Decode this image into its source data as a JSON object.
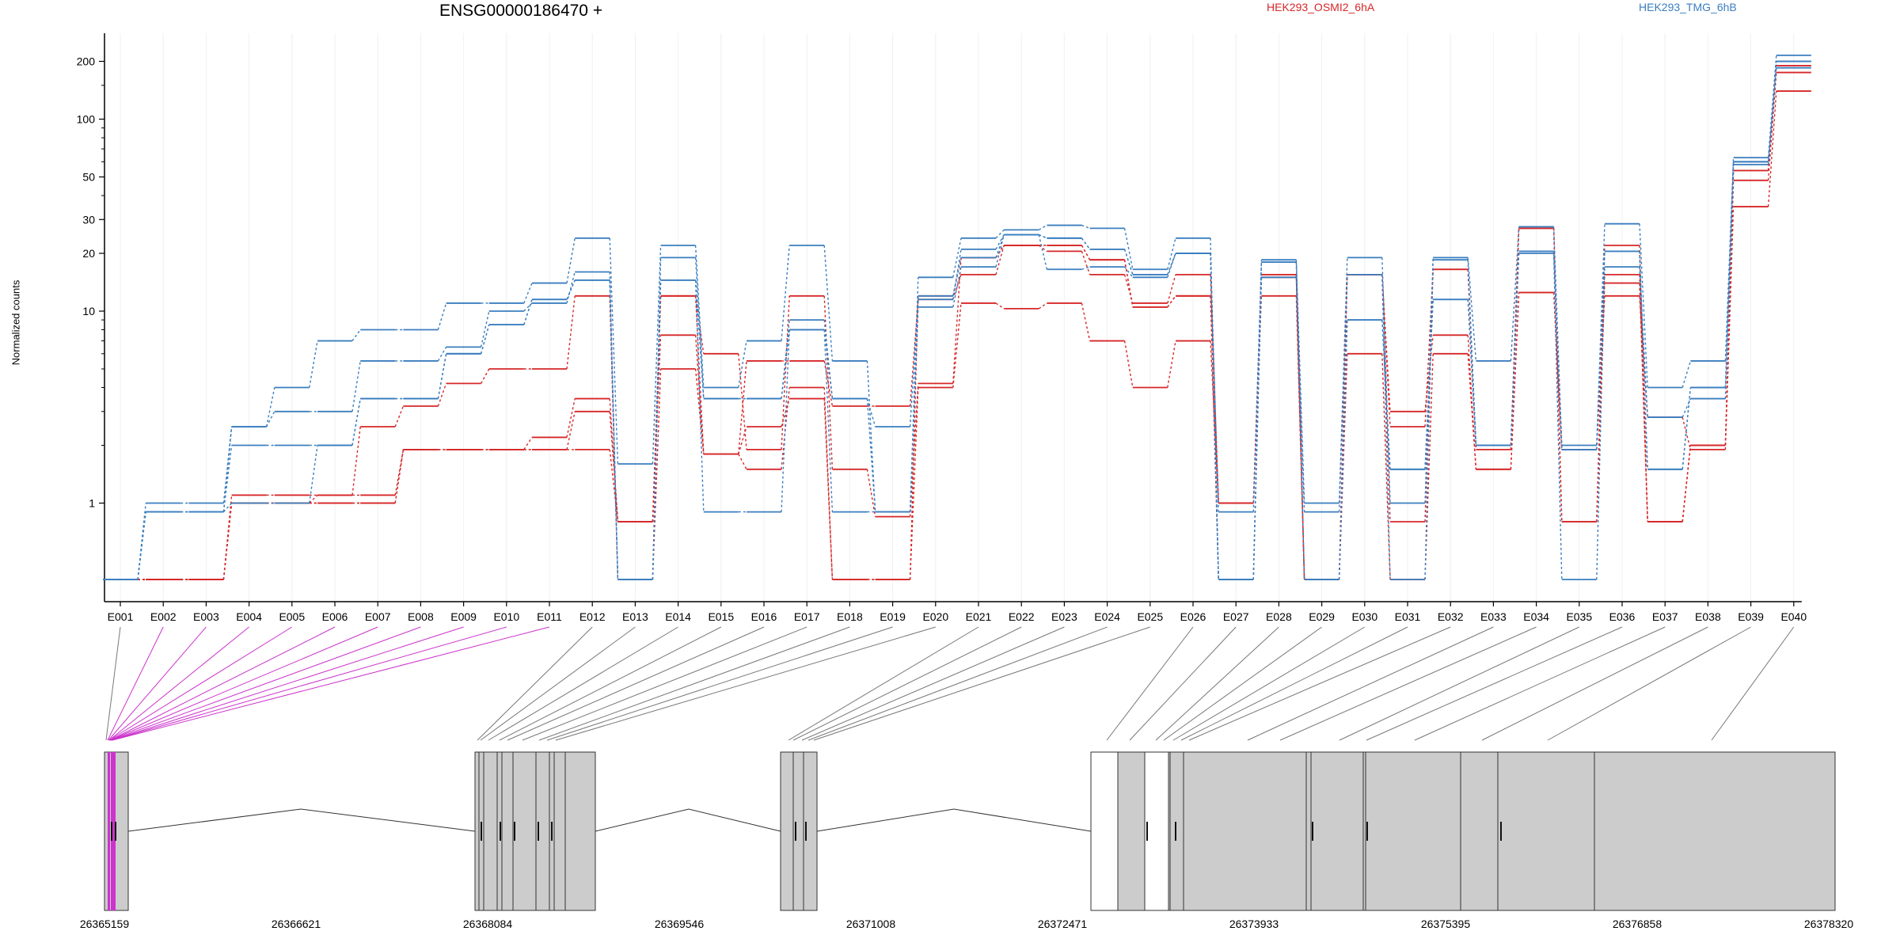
{
  "chart_data": {
    "type": "line",
    "title": "ENSG00000186470 +",
    "ylabel": "Normalized counts",
    "yscale": "log",
    "ylim": [
      0.4,
      250
    ],
    "yticks": [
      1,
      10,
      20,
      30,
      50,
      100,
      200
    ],
    "ytick_labels": [
      "1",
      "10",
      "20",
      "30",
      "50",
      "100",
      "200"
    ],
    "grid": "vertical",
    "categories": [
      "E001",
      "E002",
      "E003",
      "E004",
      "E005",
      "E006",
      "E007",
      "E008",
      "E009",
      "E010",
      "E011",
      "E012",
      "E013",
      "E014",
      "E015",
      "E016",
      "E017",
      "E018",
      "E019",
      "E020",
      "E021",
      "E022",
      "E023",
      "E024",
      "E025",
      "E026",
      "E027",
      "E028",
      "E029",
      "E030",
      "E031",
      "E032",
      "E033",
      "E034",
      "E035",
      "E036",
      "E037",
      "E038",
      "E039",
      "E040"
    ],
    "legend": [
      {
        "name": "HEK293_OSMI2_6hA",
        "color": "#d62728"
      },
      {
        "name": "HEK293_TMG_6hB",
        "color": "#3a7ebf"
      }
    ],
    "series": [
      {
        "group": "HEK293_OSMI2_6hA",
        "color": "#d62728",
        "values": [
          0.4,
          0.4,
          0.4,
          1.1,
          1.1,
          1.1,
          1.1,
          1.9,
          1.9,
          1.9,
          1.9,
          3.0,
          0.8,
          12,
          6.0,
          1.9,
          12,
          1.5,
          0.85,
          4.2,
          19,
          22,
          20.5,
          15.5,
          11,
          15.5,
          1.0,
          15.5,
          0.4,
          15.5,
          0.8,
          16.5,
          1.9,
          27,
          0.8,
          14,
          0.8,
          2.0,
          54,
          190
        ]
      },
      {
        "group": "HEK293_OSMI2_6hA",
        "color": "#d62728",
        "values": [
          0.4,
          0.4,
          0.4,
          1.0,
          1.0,
          1.0,
          1.0,
          1.9,
          1.9,
          1.9,
          2.2,
          3.5,
          0.8,
          7.5,
          1.8,
          5.5,
          5.5,
          3.2,
          3.2,
          11.5,
          15.5,
          22,
          22,
          18.5,
          10.5,
          12,
          1.0,
          12,
          0.4,
          15.5,
          3.0,
          7.5,
          1.5,
          12.5,
          1.9,
          12,
          2.8,
          1.9,
          35,
          140
        ]
      },
      {
        "group": "HEK293_OSMI2_6hA",
        "color": "#d62728",
        "values": [
          0.4,
          0.4,
          0.4,
          1.0,
          1.0,
          1.0,
          1.0,
          1.9,
          1.9,
          1.9,
          1.9,
          1.9,
          0.8,
          12,
          1.8,
          1.5,
          4.0,
          0.4,
          0.4,
          4.0,
          11,
          10.3,
          11,
          7.0,
          4.0,
          7.0,
          1.0,
          15,
          0.4,
          6.0,
          0.4,
          6.0,
          1.5,
          12.5,
          1.9,
          15.5,
          0.8,
          2.0,
          48,
          175
        ]
      },
      {
        "group": "HEK293_OSMI2_6hA",
        "color": "#d62728",
        "values": [
          0.4,
          0.4,
          0.4,
          1.0,
          1.0,
          1.1,
          2.5,
          3.2,
          4.2,
          5.0,
          5.0,
          12,
          0.4,
          5.0,
          1.8,
          2.5,
          3.5,
          0.4,
          0.4,
          12,
          19,
          22,
          22,
          18.5,
          10.5,
          12,
          0.4,
          15.5,
          0.4,
          15.5,
          2.5,
          16.5,
          2.0,
          27,
          0.8,
          22,
          0.8,
          2.0,
          54,
          190
        ]
      },
      {
        "group": "HEK293_TMG_6hB",
        "color": "#3a7ebf",
        "values": [
          0.4,
          1.0,
          1.0,
          2.5,
          4.0,
          7.0,
          8.0,
          8.0,
          11,
          11,
          14,
          24,
          1.6,
          22,
          4.0,
          7.0,
          22,
          5.5,
          0.9,
          15,
          24,
          26.5,
          28,
          27,
          16.5,
          24,
          0.4,
          18.5,
          1.0,
          19,
          1.0,
          19,
          5.5,
          27.5,
          2.0,
          28.5,
          4.0,
          5.5,
          63,
          215
        ]
      },
      {
        "group": "HEK293_TMG_6hB",
        "color": "#3a7ebf",
        "values": [
          0.4,
          0.9,
          0.9,
          2.5,
          3.0,
          3.0,
          5.5,
          5.5,
          6.5,
          10,
          11,
          16,
          0.4,
          19,
          3.5,
          3.5,
          9.0,
          3.5,
          0.9,
          11.5,
          21,
          25,
          16.5,
          17,
          15,
          20,
          0.4,
          15,
          0.9,
          15.5,
          0.4,
          18.5,
          2.0,
          20,
          0.4,
          17,
          2.8,
          3.5,
          58,
          185
        ]
      },
      {
        "group": "HEK293_TMG_6hB",
        "color": "#3a7ebf",
        "values": [
          0.4,
          0.9,
          0.9,
          1.0,
          1.0,
          2.0,
          3.5,
          3.5,
          6.0,
          8.5,
          11.5,
          14.5,
          0.4,
          14.5,
          0.9,
          0.9,
          8.0,
          0.9,
          0.9,
          10.5,
          17,
          25,
          24,
          21,
          15.5,
          20,
          0.9,
          18,
          0.4,
          9.0,
          1.5,
          11.5,
          2.0,
          20.5,
          1.9,
          20.5,
          1.5,
          4.0,
          60,
          200
        ]
      },
      {
        "group": "HEK293_TMG_6hB",
        "color": "#3a7ebf",
        "values": [
          0.4,
          0.9,
          0.9,
          2.0,
          2.0,
          2.0,
          3.5,
          3.5,
          6.0,
          8.5,
          11.5,
          14.5,
          0.4,
          14.5,
          3.5,
          3.5,
          8.0,
          3.5,
          2.5,
          12,
          19,
          25,
          24,
          21,
          15.5,
          20,
          0.4,
          18,
          0.4,
          9.0,
          1.5,
          11.5,
          2.0,
          20.5,
          1.9,
          20.5,
          1.5,
          4.0,
          60,
          200
        ]
      }
    ]
  },
  "gene_model": {
    "coordinate_labels": [
      "26365159",
      "26366621",
      "26368084",
      "26369546",
      "26371008",
      "26372471",
      "26373933",
      "26375395",
      "26376858",
      "26378320"
    ],
    "highlighted_exons": [
      "E002",
      "E003",
      "E004",
      "E005",
      "E006",
      "E007",
      "E008",
      "E009",
      "E010",
      "E011"
    ],
    "highlight_color": "#cc33cc",
    "exon_fill": "#cccccc"
  }
}
